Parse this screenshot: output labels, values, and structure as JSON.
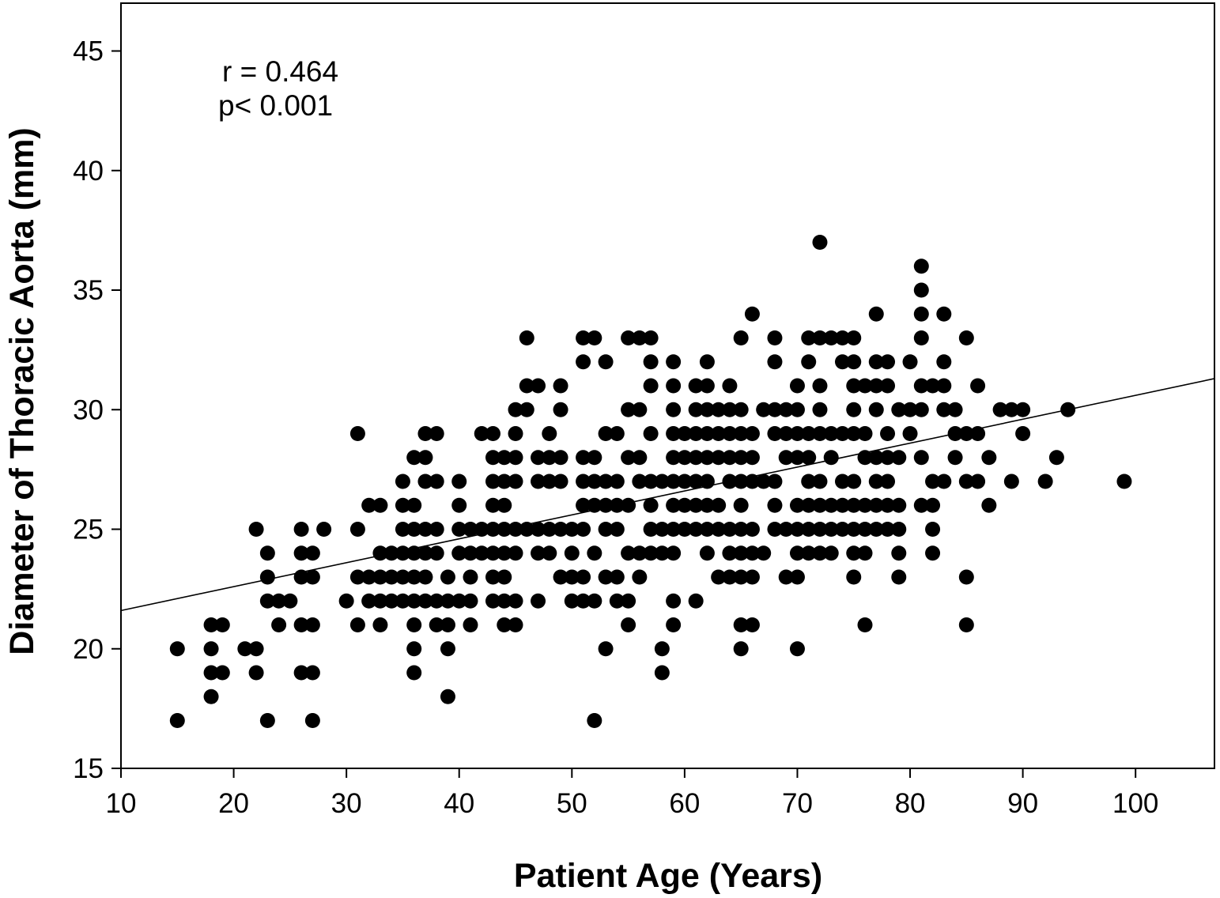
{
  "chart_data": {
    "type": "scatter",
    "title": "",
    "xlabel": "Patient Age (Years)",
    "ylabel": "Diameter of Thoracic Aorta (mm)",
    "xlim": [
      10,
      107
    ],
    "ylim": [
      15,
      47
    ],
    "x_ticks": [
      10,
      20,
      30,
      40,
      50,
      60,
      70,
      80,
      90,
      100
    ],
    "y_ticks": [
      15,
      20,
      25,
      30,
      35,
      40,
      45
    ],
    "grid": false,
    "legend": "none",
    "marker_color": "#000000",
    "annotations": [
      "r = 0.464",
      "p< 0.001"
    ],
    "regression_line": {
      "x": [
        10,
        107
      ],
      "y": [
        21.6,
        31.3
      ]
    },
    "points": [
      [
        15,
        20
      ],
      [
        15,
        17
      ],
      [
        18,
        21
      ],
      [
        19,
        21
      ],
      [
        18,
        20
      ],
      [
        18,
        19
      ],
      [
        19,
        19
      ],
      [
        18,
        18
      ],
      [
        21,
        20
      ],
      [
        22,
        20
      ],
      [
        22,
        19
      ],
      [
        22,
        25
      ],
      [
        23,
        24
      ],
      [
        23,
        23
      ],
      [
        23,
        22
      ],
      [
        24,
        22
      ],
      [
        25,
        22
      ],
      [
        24,
        21
      ],
      [
        23,
        17
      ],
      [
        26,
        25
      ],
      [
        26,
        24
      ],
      [
        27,
        24
      ],
      [
        26,
        23
      ],
      [
        27,
        23
      ],
      [
        26,
        21
      ],
      [
        27,
        21
      ],
      [
        26,
        19
      ],
      [
        27,
        19
      ],
      [
        27,
        17
      ],
      [
        28,
        25
      ],
      [
        30,
        22
      ],
      [
        31,
        29
      ],
      [
        31,
        25
      ],
      [
        31,
        23
      ],
      [
        31,
        21
      ],
      [
        32,
        26
      ],
      [
        33,
        26
      ],
      [
        32,
        23
      ],
      [
        33,
        23
      ],
      [
        32,
        22
      ],
      [
        33,
        22
      ],
      [
        33,
        21
      ],
      [
        33,
        24
      ],
      [
        34,
        24
      ],
      [
        35,
        24
      ],
      [
        34,
        23
      ],
      [
        35,
        23
      ],
      [
        34,
        22
      ],
      [
        35,
        22
      ],
      [
        35,
        27
      ],
      [
        35,
        26
      ],
      [
        36,
        26
      ],
      [
        35,
        25
      ],
      [
        36,
        25
      ],
      [
        36,
        24
      ],
      [
        36,
        23
      ],
      [
        36,
        22
      ],
      [
        36,
        21
      ],
      [
        36,
        20
      ],
      [
        36,
        19
      ],
      [
        36,
        28
      ],
      [
        37,
        28
      ],
      [
        37,
        29
      ],
      [
        38,
        29
      ],
      [
        37,
        27
      ],
      [
        38,
        27
      ],
      [
        37,
        25
      ],
      [
        38,
        25
      ],
      [
        37,
        24
      ],
      [
        38,
        24
      ],
      [
        37,
        23
      ],
      [
        37,
        22
      ],
      [
        38,
        22
      ],
      [
        38,
        21
      ],
      [
        39,
        21
      ],
      [
        39,
        20
      ],
      [
        39,
        18
      ],
      [
        39,
        23
      ],
      [
        39,
        22
      ],
      [
        40,
        27
      ],
      [
        40,
        26
      ],
      [
        40,
        25
      ],
      [
        40,
        24
      ],
      [
        40,
        22
      ],
      [
        41,
        25
      ],
      [
        41,
        24
      ],
      [
        41,
        23
      ],
      [
        41,
        22
      ],
      [
        41,
        21
      ],
      [
        42,
        29
      ],
      [
        42,
        25
      ],
      [
        42,
        24
      ],
      [
        43,
        29
      ],
      [
        43,
        28
      ],
      [
        43,
        27
      ],
      [
        43,
        26
      ],
      [
        43,
        25
      ],
      [
        43,
        24
      ],
      [
        43,
        23
      ],
      [
        43,
        22
      ],
      [
        44,
        28
      ],
      [
        44,
        27
      ],
      [
        44,
        26
      ],
      [
        44,
        25
      ],
      [
        44,
        24
      ],
      [
        44,
        23
      ],
      [
        44,
        22
      ],
      [
        44,
        21
      ],
      [
        45,
        30
      ],
      [
        45,
        29
      ],
      [
        45,
        28
      ],
      [
        45,
        27
      ],
      [
        45,
        25
      ],
      [
        45,
        24
      ],
      [
        45,
        22
      ],
      [
        45,
        21
      ],
      [
        46,
        33
      ],
      [
        46,
        31
      ],
      [
        46,
        30
      ],
      [
        46,
        25
      ],
      [
        47,
        31
      ],
      [
        47,
        28
      ],
      [
        47,
        27
      ],
      [
        47,
        25
      ],
      [
        47,
        24
      ],
      [
        47,
        22
      ],
      [
        48,
        29
      ],
      [
        48,
        28
      ],
      [
        48,
        27
      ],
      [
        48,
        25
      ],
      [
        48,
        24
      ],
      [
        49,
        31
      ],
      [
        49,
        30
      ],
      [
        49,
        28
      ],
      [
        49,
        27
      ],
      [
        49,
        25
      ],
      [
        49,
        23
      ],
      [
        50,
        25
      ],
      [
        50,
        24
      ],
      [
        50,
        23
      ],
      [
        50,
        22
      ],
      [
        51,
        33
      ],
      [
        51,
        32
      ],
      [
        51,
        28
      ],
      [
        51,
        27
      ],
      [
        51,
        26
      ],
      [
        51,
        25
      ],
      [
        51,
        23
      ],
      [
        51,
        22
      ],
      [
        52,
        33
      ],
      [
        52,
        28
      ],
      [
        52,
        27
      ],
      [
        52,
        26
      ],
      [
        52,
        24
      ],
      [
        52,
        22
      ],
      [
        52,
        17
      ],
      [
        53,
        32
      ],
      [
        53,
        29
      ],
      [
        53,
        27
      ],
      [
        53,
        26
      ],
      [
        53,
        25
      ],
      [
        53,
        23
      ],
      [
        53,
        20
      ],
      [
        54,
        29
      ],
      [
        54,
        27
      ],
      [
        54,
        26
      ],
      [
        54,
        25
      ],
      [
        54,
        23
      ],
      [
        54,
        22
      ],
      [
        55,
        33
      ],
      [
        55,
        30
      ],
      [
        55,
        28
      ],
      [
        55,
        26
      ],
      [
        55,
        24
      ],
      [
        55,
        22
      ],
      [
        55,
        21
      ],
      [
        56,
        33
      ],
      [
        56,
        30
      ],
      [
        56,
        28
      ],
      [
        56,
        27
      ],
      [
        56,
        24
      ],
      [
        56,
        23
      ],
      [
        57,
        33
      ],
      [
        57,
        32
      ],
      [
        57,
        31
      ],
      [
        57,
        29
      ],
      [
        57,
        27
      ],
      [
        57,
        26
      ],
      [
        57,
        25
      ],
      [
        57,
        24
      ],
      [
        58,
        27
      ],
      [
        58,
        25
      ],
      [
        58,
        24
      ],
      [
        58,
        20
      ],
      [
        58,
        19
      ],
      [
        59,
        32
      ],
      [
        59,
        31
      ],
      [
        59,
        30
      ],
      [
        59,
        29
      ],
      [
        59,
        28
      ],
      [
        59,
        27
      ],
      [
        59,
        26
      ],
      [
        59,
        25
      ],
      [
        59,
        24
      ],
      [
        59,
        22
      ],
      [
        59,
        21
      ],
      [
        60,
        29
      ],
      [
        60,
        28
      ],
      [
        60,
        27
      ],
      [
        60,
        26
      ],
      [
        60,
        25
      ],
      [
        61,
        31
      ],
      [
        61,
        30
      ],
      [
        61,
        29
      ],
      [
        61,
        28
      ],
      [
        61,
        27
      ],
      [
        61,
        26
      ],
      [
        61,
        25
      ],
      [
        61,
        22
      ],
      [
        62,
        32
      ],
      [
        62,
        31
      ],
      [
        62,
        30
      ],
      [
        62,
        29
      ],
      [
        62,
        28
      ],
      [
        62,
        27
      ],
      [
        62,
        26
      ],
      [
        62,
        25
      ],
      [
        62,
        24
      ],
      [
        63,
        30
      ],
      [
        63,
        29
      ],
      [
        63,
        28
      ],
      [
        63,
        26
      ],
      [
        63,
        25
      ],
      [
        63,
        23
      ],
      [
        64,
        31
      ],
      [
        64,
        30
      ],
      [
        64,
        29
      ],
      [
        64,
        28
      ],
      [
        64,
        27
      ],
      [
        64,
        25
      ],
      [
        64,
        24
      ],
      [
        64,
        23
      ],
      [
        65,
        33
      ],
      [
        65,
        30
      ],
      [
        65,
        29
      ],
      [
        65,
        28
      ],
      [
        65,
        27
      ],
      [
        65,
        26
      ],
      [
        65,
        25
      ],
      [
        65,
        24
      ],
      [
        65,
        23
      ],
      [
        65,
        21
      ],
      [
        65,
        20
      ],
      [
        66,
        34
      ],
      [
        66,
        29
      ],
      [
        66,
        28
      ],
      [
        66,
        27
      ],
      [
        66,
        25
      ],
      [
        66,
        24
      ],
      [
        66,
        23
      ],
      [
        66,
        21
      ],
      [
        67,
        30
      ],
      [
        67,
        27
      ],
      [
        67,
        24
      ],
      [
        68,
        33
      ],
      [
        68,
        32
      ],
      [
        68,
        30
      ],
      [
        68,
        29
      ],
      [
        68,
        27
      ],
      [
        68,
        26
      ],
      [
        68,
        25
      ],
      [
        69,
        30
      ],
      [
        69,
        29
      ],
      [
        69,
        28
      ],
      [
        69,
        25
      ],
      [
        69,
        23
      ],
      [
        70,
        31
      ],
      [
        70,
        30
      ],
      [
        70,
        29
      ],
      [
        70,
        28
      ],
      [
        70,
        26
      ],
      [
        70,
        25
      ],
      [
        70,
        24
      ],
      [
        70,
        23
      ],
      [
        70,
        20
      ],
      [
        71,
        33
      ],
      [
        71,
        32
      ],
      [
        71,
        29
      ],
      [
        71,
        28
      ],
      [
        71,
        27
      ],
      [
        71,
        26
      ],
      [
        71,
        25
      ],
      [
        71,
        24
      ],
      [
        72,
        37
      ],
      [
        72,
        33
      ],
      [
        72,
        31
      ],
      [
        72,
        30
      ],
      [
        72,
        29
      ],
      [
        72,
        27
      ],
      [
        72,
        26
      ],
      [
        72,
        25
      ],
      [
        72,
        24
      ],
      [
        73,
        33
      ],
      [
        73,
        29
      ],
      [
        73,
        28
      ],
      [
        73,
        26
      ],
      [
        73,
        25
      ],
      [
        73,
        24
      ],
      [
        74,
        33
      ],
      [
        74,
        32
      ],
      [
        74,
        29
      ],
      [
        74,
        27
      ],
      [
        74,
        26
      ],
      [
        74,
        25
      ],
      [
        75,
        33
      ],
      [
        75,
        32
      ],
      [
        75,
        31
      ],
      [
        75,
        30
      ],
      [
        75,
        29
      ],
      [
        75,
        27
      ],
      [
        75,
        26
      ],
      [
        75,
        25
      ],
      [
        75,
        24
      ],
      [
        75,
        23
      ],
      [
        76,
        31
      ],
      [
        76,
        29
      ],
      [
        76,
        28
      ],
      [
        76,
        26
      ],
      [
        76,
        25
      ],
      [
        76,
        24
      ],
      [
        76,
        21
      ],
      [
        77,
        34
      ],
      [
        77,
        32
      ],
      [
        77,
        31
      ],
      [
        77,
        30
      ],
      [
        77,
        28
      ],
      [
        77,
        27
      ],
      [
        77,
        26
      ],
      [
        77,
        25
      ],
      [
        78,
        32
      ],
      [
        78,
        31
      ],
      [
        78,
        29
      ],
      [
        78,
        28
      ],
      [
        78,
        27
      ],
      [
        78,
        26
      ],
      [
        78,
        25
      ],
      [
        79,
        30
      ],
      [
        79,
        28
      ],
      [
        79,
        26
      ],
      [
        79,
        25
      ],
      [
        79,
        24
      ],
      [
        79,
        23
      ],
      [
        80,
        32
      ],
      [
        80,
        30
      ],
      [
        80,
        29
      ],
      [
        81,
        36
      ],
      [
        81,
        35
      ],
      [
        81,
        34
      ],
      [
        81,
        33
      ],
      [
        81,
        31
      ],
      [
        81,
        30
      ],
      [
        81,
        28
      ],
      [
        81,
        26
      ],
      [
        82,
        31
      ],
      [
        82,
        27
      ],
      [
        82,
        26
      ],
      [
        82,
        25
      ],
      [
        82,
        24
      ],
      [
        83,
        34
      ],
      [
        83,
        32
      ],
      [
        83,
        31
      ],
      [
        83,
        30
      ],
      [
        83,
        27
      ],
      [
        84,
        30
      ],
      [
        84,
        29
      ],
      [
        84,
        28
      ],
      [
        85,
        33
      ],
      [
        85,
        29
      ],
      [
        85,
        27
      ],
      [
        85,
        23
      ],
      [
        85,
        21
      ],
      [
        86,
        31
      ],
      [
        86,
        29
      ],
      [
        86,
        27
      ],
      [
        87,
        28
      ],
      [
        87,
        26
      ],
      [
        88,
        30
      ],
      [
        89,
        30
      ],
      [
        89,
        27
      ],
      [
        90,
        30
      ],
      [
        90,
        29
      ],
      [
        92,
        27
      ],
      [
        93,
        28
      ],
      [
        94,
        30
      ],
      [
        99,
        27
      ]
    ]
  }
}
